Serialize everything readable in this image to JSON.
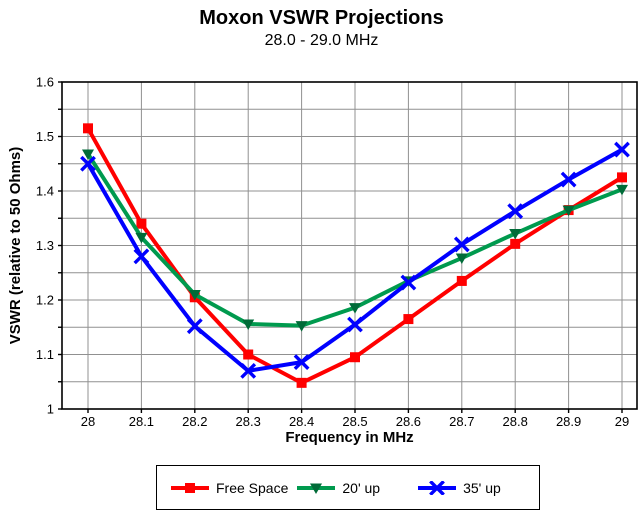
{
  "title": "Moxon VSWR Projections",
  "subtitle": "28.0 - 29.0 MHz",
  "chart_data": {
    "type": "line",
    "title": "Moxon VSWR Projections",
    "subtitle": "28.0 - 29.0 MHz",
    "xlabel": "Frequency in MHz",
    "ylabel": "VSWR (relative to 50 Ohms)",
    "x": [
      28.0,
      28.1,
      28.2,
      28.3,
      28.4,
      28.5,
      28.6,
      28.7,
      28.8,
      28.9,
      29.0
    ],
    "x_tick_labels": [
      "28",
      "28.1",
      "28.2",
      "28.3",
      "28.4",
      "28.5",
      "28.6",
      "28.7",
      "28.8",
      "28.9",
      "29"
    ],
    "y_tick_labels": [
      "1.6",
      "1.5",
      "1.4",
      "1.3",
      "1.2",
      "1.1",
      "1"
    ],
    "ylim": [
      1.0,
      1.6
    ],
    "xlim": [
      27.95,
      29.03
    ],
    "y_major_step": 0.1,
    "y_minor_step": 0.05,
    "grid": true,
    "legend_position": "bottom",
    "series": [
      {
        "name": "Free Space",
        "marker": "square",
        "line_color": "#ff0000",
        "marker_color": "#ff0000",
        "values": [
          1.515,
          1.34,
          1.205,
          1.1,
          1.048,
          1.095,
          1.165,
          1.235,
          1.303,
          1.365,
          1.425
        ]
      },
      {
        "name": "20' up",
        "marker": "triangle-down",
        "line_color": "#009A4E",
        "marker_color": "#006B38",
        "values": [
          1.468,
          1.315,
          1.21,
          1.156,
          1.153,
          1.186,
          1.235,
          1.277,
          1.322,
          1.365,
          1.403
        ]
      },
      {
        "name": "35' up",
        "marker": "x",
        "line_color": "#0000ff",
        "marker_color": "#0000ff",
        "values": [
          1.45,
          1.28,
          1.152,
          1.07,
          1.086,
          1.155,
          1.232,
          1.302,
          1.363,
          1.421,
          1.476
        ]
      }
    ],
    "colors": {
      "grid": "#909090",
      "axis": "#000000",
      "background": "#ffffff",
      "text": "#000000"
    }
  }
}
